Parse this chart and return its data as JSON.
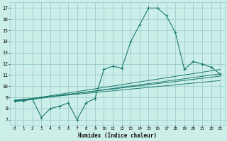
{
  "title": "",
  "xlabel": "Humidex (Indice chaleur)",
  "bg_color": "#cceee8",
  "grid_color": "#99cccc",
  "line_color": "#1a7a6e",
  "xlim": [
    -0.5,
    23.5
  ],
  "ylim": [
    6.5,
    17.5
  ],
  "xticks": [
    0,
    1,
    2,
    3,
    4,
    5,
    6,
    7,
    8,
    9,
    10,
    11,
    12,
    13,
    14,
    15,
    16,
    17,
    18,
    19,
    20,
    21,
    22,
    23
  ],
  "yticks": [
    7,
    8,
    9,
    10,
    11,
    12,
    13,
    14,
    15,
    16,
    17
  ],
  "main_x": [
    0,
    1,
    2,
    3,
    4,
    5,
    6,
    7,
    8,
    9,
    10,
    11,
    12,
    13,
    14,
    15,
    16,
    17,
    18,
    19,
    20,
    21,
    22,
    23
  ],
  "main_y": [
    8.7,
    8.7,
    8.85,
    7.2,
    8.0,
    8.2,
    8.5,
    7.0,
    8.5,
    8.9,
    11.5,
    11.8,
    11.6,
    14.0,
    15.5,
    17.0,
    17.0,
    16.3,
    14.8,
    11.5,
    12.2,
    12.0,
    11.7,
    11.1
  ],
  "trend1_x": [
    0,
    23
  ],
  "trend1_y": [
    8.65,
    11.5
  ],
  "trend2_x": [
    0,
    23
  ],
  "trend2_y": [
    8.7,
    10.9
  ],
  "trend3_x": [
    0,
    23
  ],
  "trend3_y": [
    8.75,
    10.5
  ],
  "trend4_x": [
    0,
    23
  ],
  "trend4_y": [
    8.6,
    11.1
  ]
}
